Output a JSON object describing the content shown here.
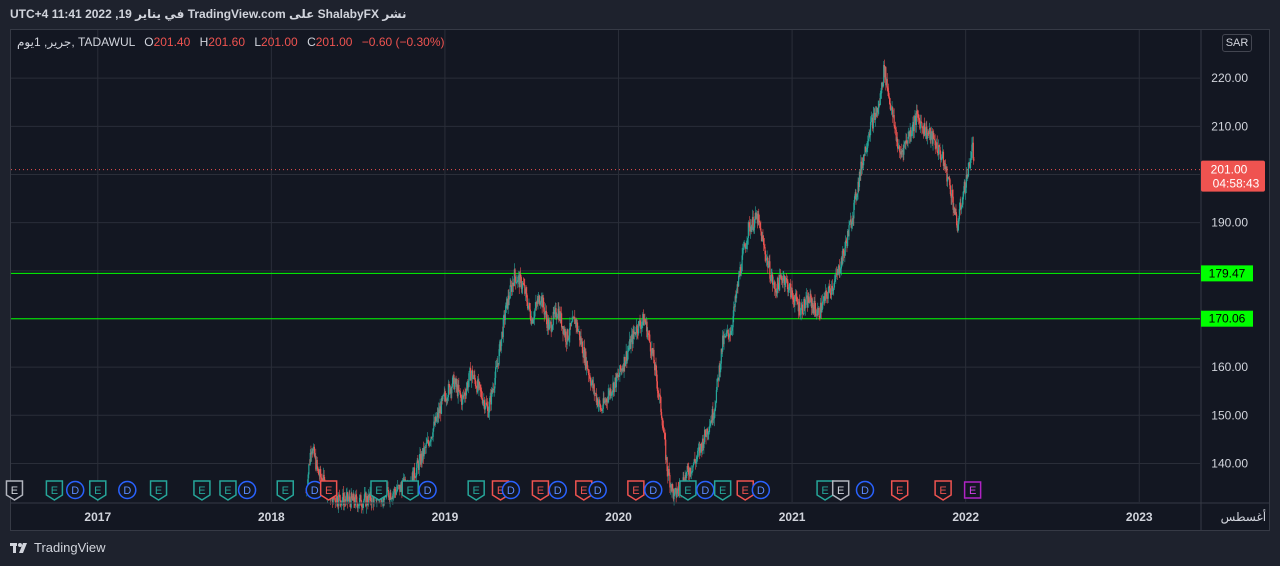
{
  "header": {
    "caption": "نشر ShalabyFX على TradingView.com في يناير 19, 2022 11:41 UTC+4"
  },
  "legend": {
    "symbol": "جرير, 1يوم, TADAWUL",
    "open_label": "O",
    "open": "201.40",
    "high_label": "H",
    "high": "201.60",
    "low_label": "L",
    "low": "201.00",
    "close_label": "C",
    "close": "201.00",
    "change": "−0.60 (−0.30%)"
  },
  "currency_badge": "SAR",
  "price_label": {
    "price": "201.00",
    "countdown": "04:58:43"
  },
  "footer": {
    "brand": "TradingView"
  },
  "colors": {
    "background": "#131722",
    "up": "#26a69a",
    "down": "#ef5350",
    "level_line": "#00ff00",
    "grid": "#2a2e39",
    "text": "#d1d4dc"
  },
  "chart_data": {
    "type": "candlestick",
    "title": "",
    "xlabel": "",
    "ylabel": "",
    "ylim": [
      132,
      230
    ],
    "xlim": [
      2016.5,
      2023.35
    ],
    "x_ticks": [
      "2017",
      "2018",
      "2019",
      "2020",
      "2021",
      "2022",
      "2023",
      "أغسطس"
    ],
    "x_tick_positions": [
      2017,
      2018,
      2019,
      2020,
      2021,
      2022,
      2023,
      2023.6
    ],
    "y_ticks": [
      "140.00",
      "150.00",
      "160.00",
      "170.00",
      "180.00",
      "190.00",
      "200.00",
      "210.00",
      "220.00"
    ],
    "y_tick_values": [
      140,
      150,
      160,
      170,
      180,
      190,
      200,
      210,
      220
    ],
    "current_price": 201.0,
    "horizontal_levels": [
      {
        "value": 179.47,
        "label": "179.47"
      },
      {
        "value": 170.06,
        "label": "170.06"
      }
    ],
    "price_path": [
      [
        2018.2,
        134
      ],
      [
        2018.23,
        144
      ],
      [
        2018.27,
        138
      ],
      [
        2018.35,
        133
      ],
      [
        2018.5,
        132
      ],
      [
        2018.7,
        134
      ],
      [
        2018.8,
        136
      ],
      [
        2018.9,
        144
      ],
      [
        2019.0,
        154
      ],
      [
        2019.05,
        157
      ],
      [
        2019.1,
        153
      ],
      [
        2019.15,
        159
      ],
      [
        2019.2,
        155
      ],
      [
        2019.25,
        151
      ],
      [
        2019.3,
        160
      ],
      [
        2019.35,
        172
      ],
      [
        2019.4,
        179
      ],
      [
        2019.45,
        177
      ],
      [
        2019.5,
        170
      ],
      [
        2019.55,
        175
      ],
      [
        2019.6,
        168
      ],
      [
        2019.65,
        172
      ],
      [
        2019.7,
        166
      ],
      [
        2019.75,
        170
      ],
      [
        2019.8,
        163
      ],
      [
        2019.85,
        156
      ],
      [
        2019.9,
        151
      ],
      [
        2019.95,
        155
      ],
      [
        2020.0,
        158
      ],
      [
        2020.05,
        163
      ],
      [
        2020.1,
        168
      ],
      [
        2020.15,
        170
      ],
      [
        2020.2,
        162
      ],
      [
        2020.25,
        150
      ],
      [
        2020.28,
        139
      ],
      [
        2020.32,
        133
      ],
      [
        2020.38,
        137
      ],
      [
        2020.45,
        141
      ],
      [
        2020.5,
        146
      ],
      [
        2020.55,
        151
      ],
      [
        2020.6,
        165
      ],
      [
        2020.65,
        168
      ],
      [
        2020.7,
        180
      ],
      [
        2020.75,
        189
      ],
      [
        2020.8,
        191
      ],
      [
        2020.85,
        183
      ],
      [
        2020.9,
        176
      ],
      [
        2020.95,
        179
      ],
      [
        2021.0,
        175
      ],
      [
        2021.05,
        172
      ],
      [
        2021.1,
        174
      ],
      [
        2021.15,
        171
      ],
      [
        2021.2,
        175
      ],
      [
        2021.25,
        178
      ],
      [
        2021.3,
        184
      ],
      [
        2021.35,
        192
      ],
      [
        2021.4,
        202
      ],
      [
        2021.45,
        210
      ],
      [
        2021.5,
        214
      ],
      [
        2021.53,
        222
      ],
      [
        2021.57,
        214
      ],
      [
        2021.62,
        204
      ],
      [
        2021.67,
        208
      ],
      [
        2021.72,
        212
      ],
      [
        2021.77,
        209
      ],
      [
        2021.82,
        207
      ],
      [
        2021.87,
        203
      ],
      [
        2021.92,
        196
      ],
      [
        2021.95,
        189
      ],
      [
        2021.98,
        195
      ],
      [
        2022.01,
        200
      ],
      [
        2022.04,
        206
      ],
      [
        2022.05,
        201
      ]
    ],
    "earnings_markers": [
      {
        "x": 2016.52,
        "label": "E",
        "kind": "reported"
      },
      {
        "x": 2016.75,
        "label": "E",
        "kind": "beat"
      },
      {
        "x": 2016.87,
        "label": "D",
        "kind": "dividend"
      },
      {
        "x": 2017.0,
        "label": "E",
        "kind": "beat"
      },
      {
        "x": 2017.17,
        "label": "D",
        "kind": "dividend"
      },
      {
        "x": 2017.35,
        "label": "E",
        "kind": "beat"
      },
      {
        "x": 2017.6,
        "label": "E",
        "kind": "beat"
      },
      {
        "x": 2017.75,
        "label": "E",
        "kind": "beat"
      },
      {
        "x": 2017.86,
        "label": "D",
        "kind": "dividend"
      },
      {
        "x": 2018.08,
        "label": "E",
        "kind": "beat"
      },
      {
        "x": 2018.25,
        "label": "D",
        "kind": "dividend"
      },
      {
        "x": 2018.33,
        "label": "E",
        "kind": "missed"
      },
      {
        "x": 2018.62,
        "label": "E",
        "kind": "beat"
      },
      {
        "x": 2018.8,
        "label": "E",
        "kind": "beat"
      },
      {
        "x": 2018.9,
        "label": "D",
        "kind": "dividend"
      },
      {
        "x": 2019.18,
        "label": "E",
        "kind": "beat"
      },
      {
        "x": 2019.32,
        "label": "E",
        "kind": "missed"
      },
      {
        "x": 2019.38,
        "label": "D",
        "kind": "dividend"
      },
      {
        "x": 2019.55,
        "label": "E",
        "kind": "missed"
      },
      {
        "x": 2019.65,
        "label": "D",
        "kind": "dividend"
      },
      {
        "x": 2019.8,
        "label": "E",
        "kind": "missed"
      },
      {
        "x": 2019.88,
        "label": "D",
        "kind": "dividend"
      },
      {
        "x": 2020.1,
        "label": "E",
        "kind": "missed"
      },
      {
        "x": 2020.2,
        "label": "D",
        "kind": "dividend"
      },
      {
        "x": 2020.4,
        "label": "E",
        "kind": "beat"
      },
      {
        "x": 2020.5,
        "label": "D",
        "kind": "dividend"
      },
      {
        "x": 2020.6,
        "label": "E",
        "kind": "beat"
      },
      {
        "x": 2020.73,
        "label": "E",
        "kind": "missed"
      },
      {
        "x": 2020.82,
        "label": "D",
        "kind": "dividend"
      },
      {
        "x": 2021.19,
        "label": "E",
        "kind": "beat"
      },
      {
        "x": 2021.28,
        "label": "E",
        "kind": "reported"
      },
      {
        "x": 2021.42,
        "label": "D",
        "kind": "dividend"
      },
      {
        "x": 2021.62,
        "label": "E",
        "kind": "missed"
      },
      {
        "x": 2021.87,
        "label": "E",
        "kind": "missed"
      },
      {
        "x": 2022.04,
        "label": "E",
        "kind": "upcoming"
      }
    ]
  }
}
